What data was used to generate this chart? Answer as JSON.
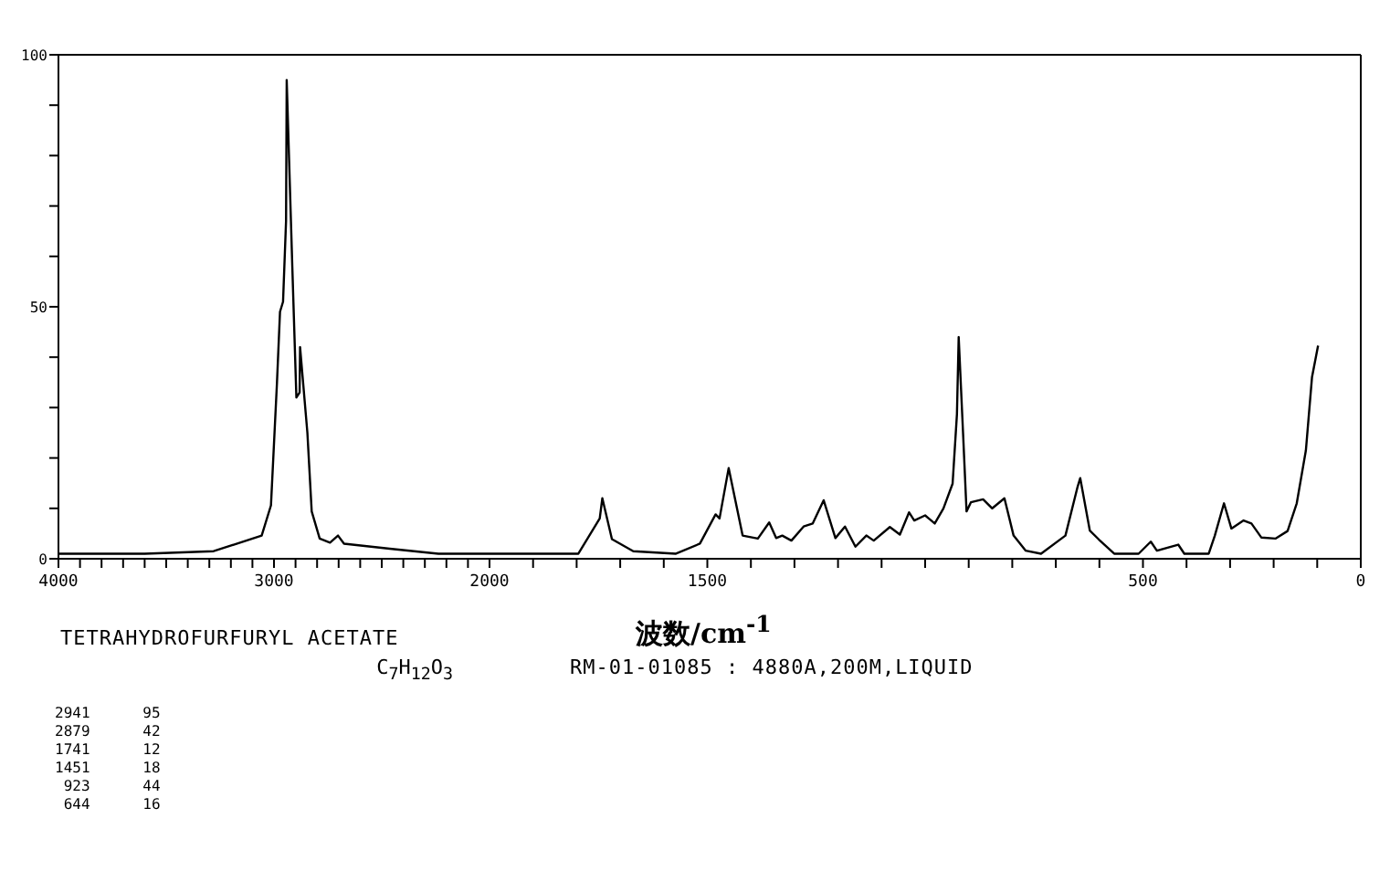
{
  "chart_data": [
    {
      "type": "line",
      "title": "TETRAHYDROFURFURYL ACETATE",
      "subtitle": "C$_{7}$H$_{12}$O$_{3}$",
      "annotations": [
        "2941      95",
        "2879      42",
        "1741      12",
        "1451      18",
        " 923      44",
        " 644      16"
      ],
      "x": [
        4000,
        3600,
        3280,
        3057,
        3014,
        2986,
        2972,
        2958,
        2944,
        2941,
        2915,
        2896,
        2881,
        2879,
        2845,
        2825,
        2788,
        2740,
        2703,
        2675,
        2463,
        2237,
        2000
      ],
      "series": [
        {
          "color": "#000000",
          "values": [
            1,
            1,
            1.5,
            4.6,
            10.6,
            35,
            49,
            51,
            67,
            95,
            58,
            32,
            33,
            42,
            25,
            9.4,
            4,
            3.2,
            4.6,
            3,
            2,
            1,
            1
          ]
        }
      ],
      "xlim": [
        4000,
        2000
      ],
      "ylim": [
        0,
        100
      ],
      "xticks": [
        4000,
        {
          "value": 3900,
          "label": null
        },
        {
          "value": 3800,
          "label": null
        },
        {
          "value": 3700,
          "label": null
        },
        {
          "value": 3600,
          "label": null
        },
        {
          "value": 3500,
          "label": null
        },
        {
          "value": 3400,
          "label": null
        },
        {
          "value": 3300,
          "label": null
        },
        {
          "value": 3200,
          "label": null
        },
        {
          "value": 3100,
          "label": null
        },
        3000,
        {
          "value": 2900,
          "label": null
        },
        {
          "value": 2800,
          "label": null
        },
        {
          "value": 2700,
          "label": null
        },
        {
          "value": 2600,
          "label": null
        },
        {
          "value": 2500,
          "label": null
        },
        {
          "value": 2400,
          "label": null
        },
        {
          "value": 2300,
          "label": null
        },
        {
          "value": 2200,
          "label": null
        },
        {
          "value": 2100,
          "label": null
        }
      ],
      "yticks": [
        0,
        {
          "value": 10,
          "label": null
        },
        {
          "value": 20,
          "label": null
        },
        {
          "value": 30,
          "label": null
        },
        {
          "value": 40,
          "label": null
        },
        50,
        {
          "value": 60,
          "label": null
        },
        {
          "value": 70,
          "label": null
        },
        {
          "value": 80,
          "label": null
        },
        {
          "value": 90,
          "label": null
        },
        100
      ],
      "grid": false,
      "marker": "none",
      "line_style": "solid"
    },
    {
      "type": "line",
      "xlabel": "波数/cm$^{-1}$",
      "annotations": [
        "RM-01-01085 : 4880A,200M,LIQUID"
      ],
      "x": [
        2000,
        1796,
        1747,
        1741,
        1719,
        1670,
        1572,
        1517,
        1481,
        1472,
        1451,
        1419,
        1384,
        1358,
        1342,
        1328,
        1307,
        1279,
        1258,
        1233,
        1206,
        1184,
        1160,
        1135,
        1118,
        1081,
        1058,
        1037,
        1025,
        1000,
        978,
        958,
        937,
        927,
        923,
        913,
        905,
        895,
        867,
        846,
        818,
        797,
        769,
        734,
        678,
        650,
        644,
        622,
        601,
        566,
        510,
        482,
        468,
        419,
        405,
        349,
        335,
        314,
        297,
        269,
        251,
        228,
        196,
        168,
        147,
        126,
        112,
        98
      ],
      "series": [
        {
          "color": "#000000",
          "values": [
            1,
            1,
            8,
            12,
            3.9,
            1.5,
            1,
            3,
            8.8,
            8,
            18,
            4.6,
            4,
            7.2,
            4.1,
            4.6,
            3.6,
            6.4,
            7,
            11.6,
            4.1,
            6.4,
            2.4,
            4.6,
            3.6,
            6.3,
            4.8,
            9.2,
            7.6,
            8.6,
            7,
            10,
            14.9,
            28.7,
            44,
            25,
            9.4,
            11.2,
            11.8,
            10,
            12,
            4.6,
            1.6,
            1,
            4.6,
            14.3,
            16,
            5.6,
            3.8,
            1,
            1,
            3.4,
            1.6,
            2.8,
            1,
            1,
            4.6,
            11,
            6,
            7.6,
            7,
            4.2,
            4,
            5.5,
            11,
            21.5,
            36,
            42.3
          ]
        }
      ],
      "xlim": [
        2000,
        0
      ],
      "ylim": [
        0,
        100
      ],
      "xticks": [
        2000,
        {
          "value": 1900,
          "label": null
        },
        {
          "value": 1800,
          "label": null
        },
        {
          "value": 1700,
          "label": null
        },
        {
          "value": 1600,
          "label": null
        },
        1500,
        {
          "value": 1400,
          "label": null
        },
        {
          "value": 1300,
          "label": null
        },
        {
          "value": 1200,
          "label": null
        },
        {
          "value": 1100,
          "label": null
        },
        {
          "value": 1000,
          "label": null
        },
        {
          "value": 900,
          "label": null
        },
        {
          "value": 800,
          "label": null
        },
        {
          "value": 700,
          "label": null
        },
        {
          "value": 600,
          "label": null
        },
        500,
        {
          "value": 400,
          "label": null
        },
        {
          "value": 300,
          "label": null
        },
        {
          "value": 200,
          "label": null
        },
        {
          "value": 100,
          "label": null
        },
        0
      ],
      "tick_labels": "x",
      "grid": false,
      "marker": "none",
      "line_style": "solid"
    }
  ]
}
